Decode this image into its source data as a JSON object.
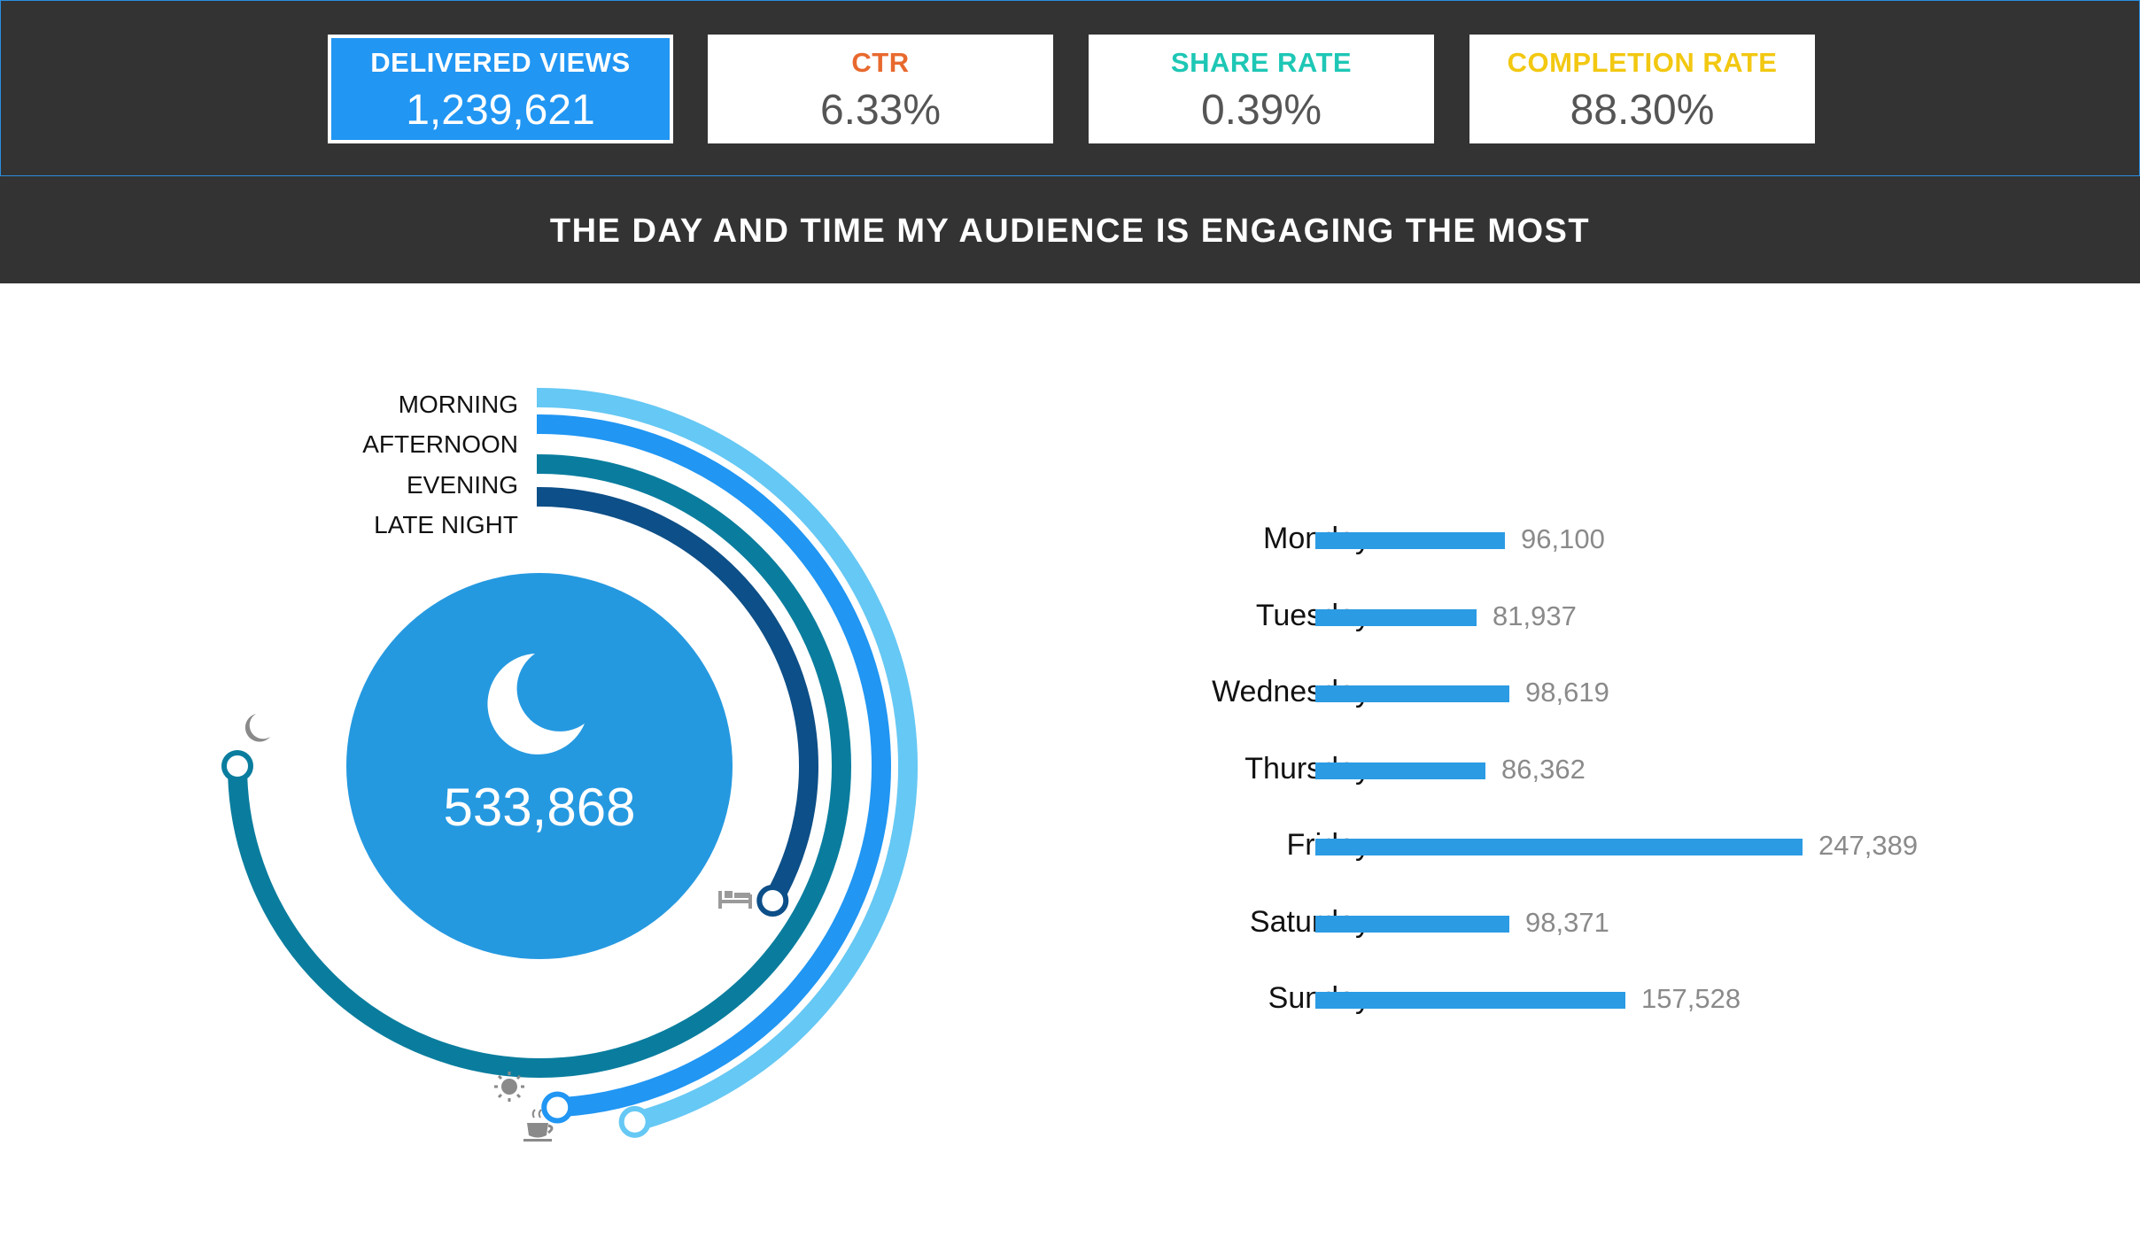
{
  "stats": [
    {
      "label": "DELIVERED VIEWS",
      "value": "1,239,621",
      "color": "#ffffff",
      "active": true
    },
    {
      "label": "CTR",
      "value": "6.33%",
      "color": "#e8692e",
      "active": false
    },
    {
      "label": "SHARE RATE",
      "value": "0.39%",
      "color": "#1ec7b5",
      "active": false
    },
    {
      "label": "COMPLETION RATE",
      "value": "88.30%",
      "color": "#f2c811",
      "active": false
    }
  ],
  "banner": {
    "title": "THE DAY AND TIME MY AUDIENCE IS ENGAGING THE MOST"
  },
  "time_of_day": {
    "center_value": "533,868",
    "center_icon": "moon-icon",
    "legend": [
      {
        "label": "MORNING",
        "color": "#66c8f4",
        "icon": "coffee-icon"
      },
      {
        "label": "AFTERNOON",
        "color": "#2196f3",
        "icon": "sun-icon"
      },
      {
        "label": "EVENING",
        "color": "#0a7d9e",
        "icon": "moon-icon"
      },
      {
        "label": "LATE NIGHT",
        "color": "#0d4f88",
        "icon": "bed-icon"
      }
    ]
  },
  "chart_data": {
    "type": "bar",
    "orientation": "horizontal",
    "categories": [
      "Monday",
      "Tuesday",
      "Wednesday",
      "Thursday",
      "Friday",
      "Saturday",
      "Sunday"
    ],
    "values": [
      96100,
      81937,
      98619,
      86362,
      247389,
      98371,
      157528
    ],
    "value_labels": [
      "96,100",
      "81,937",
      "98,619",
      "86,362",
      "247,389",
      "98,371",
      "157,528"
    ],
    "bar_color": "#2b9be4"
  }
}
